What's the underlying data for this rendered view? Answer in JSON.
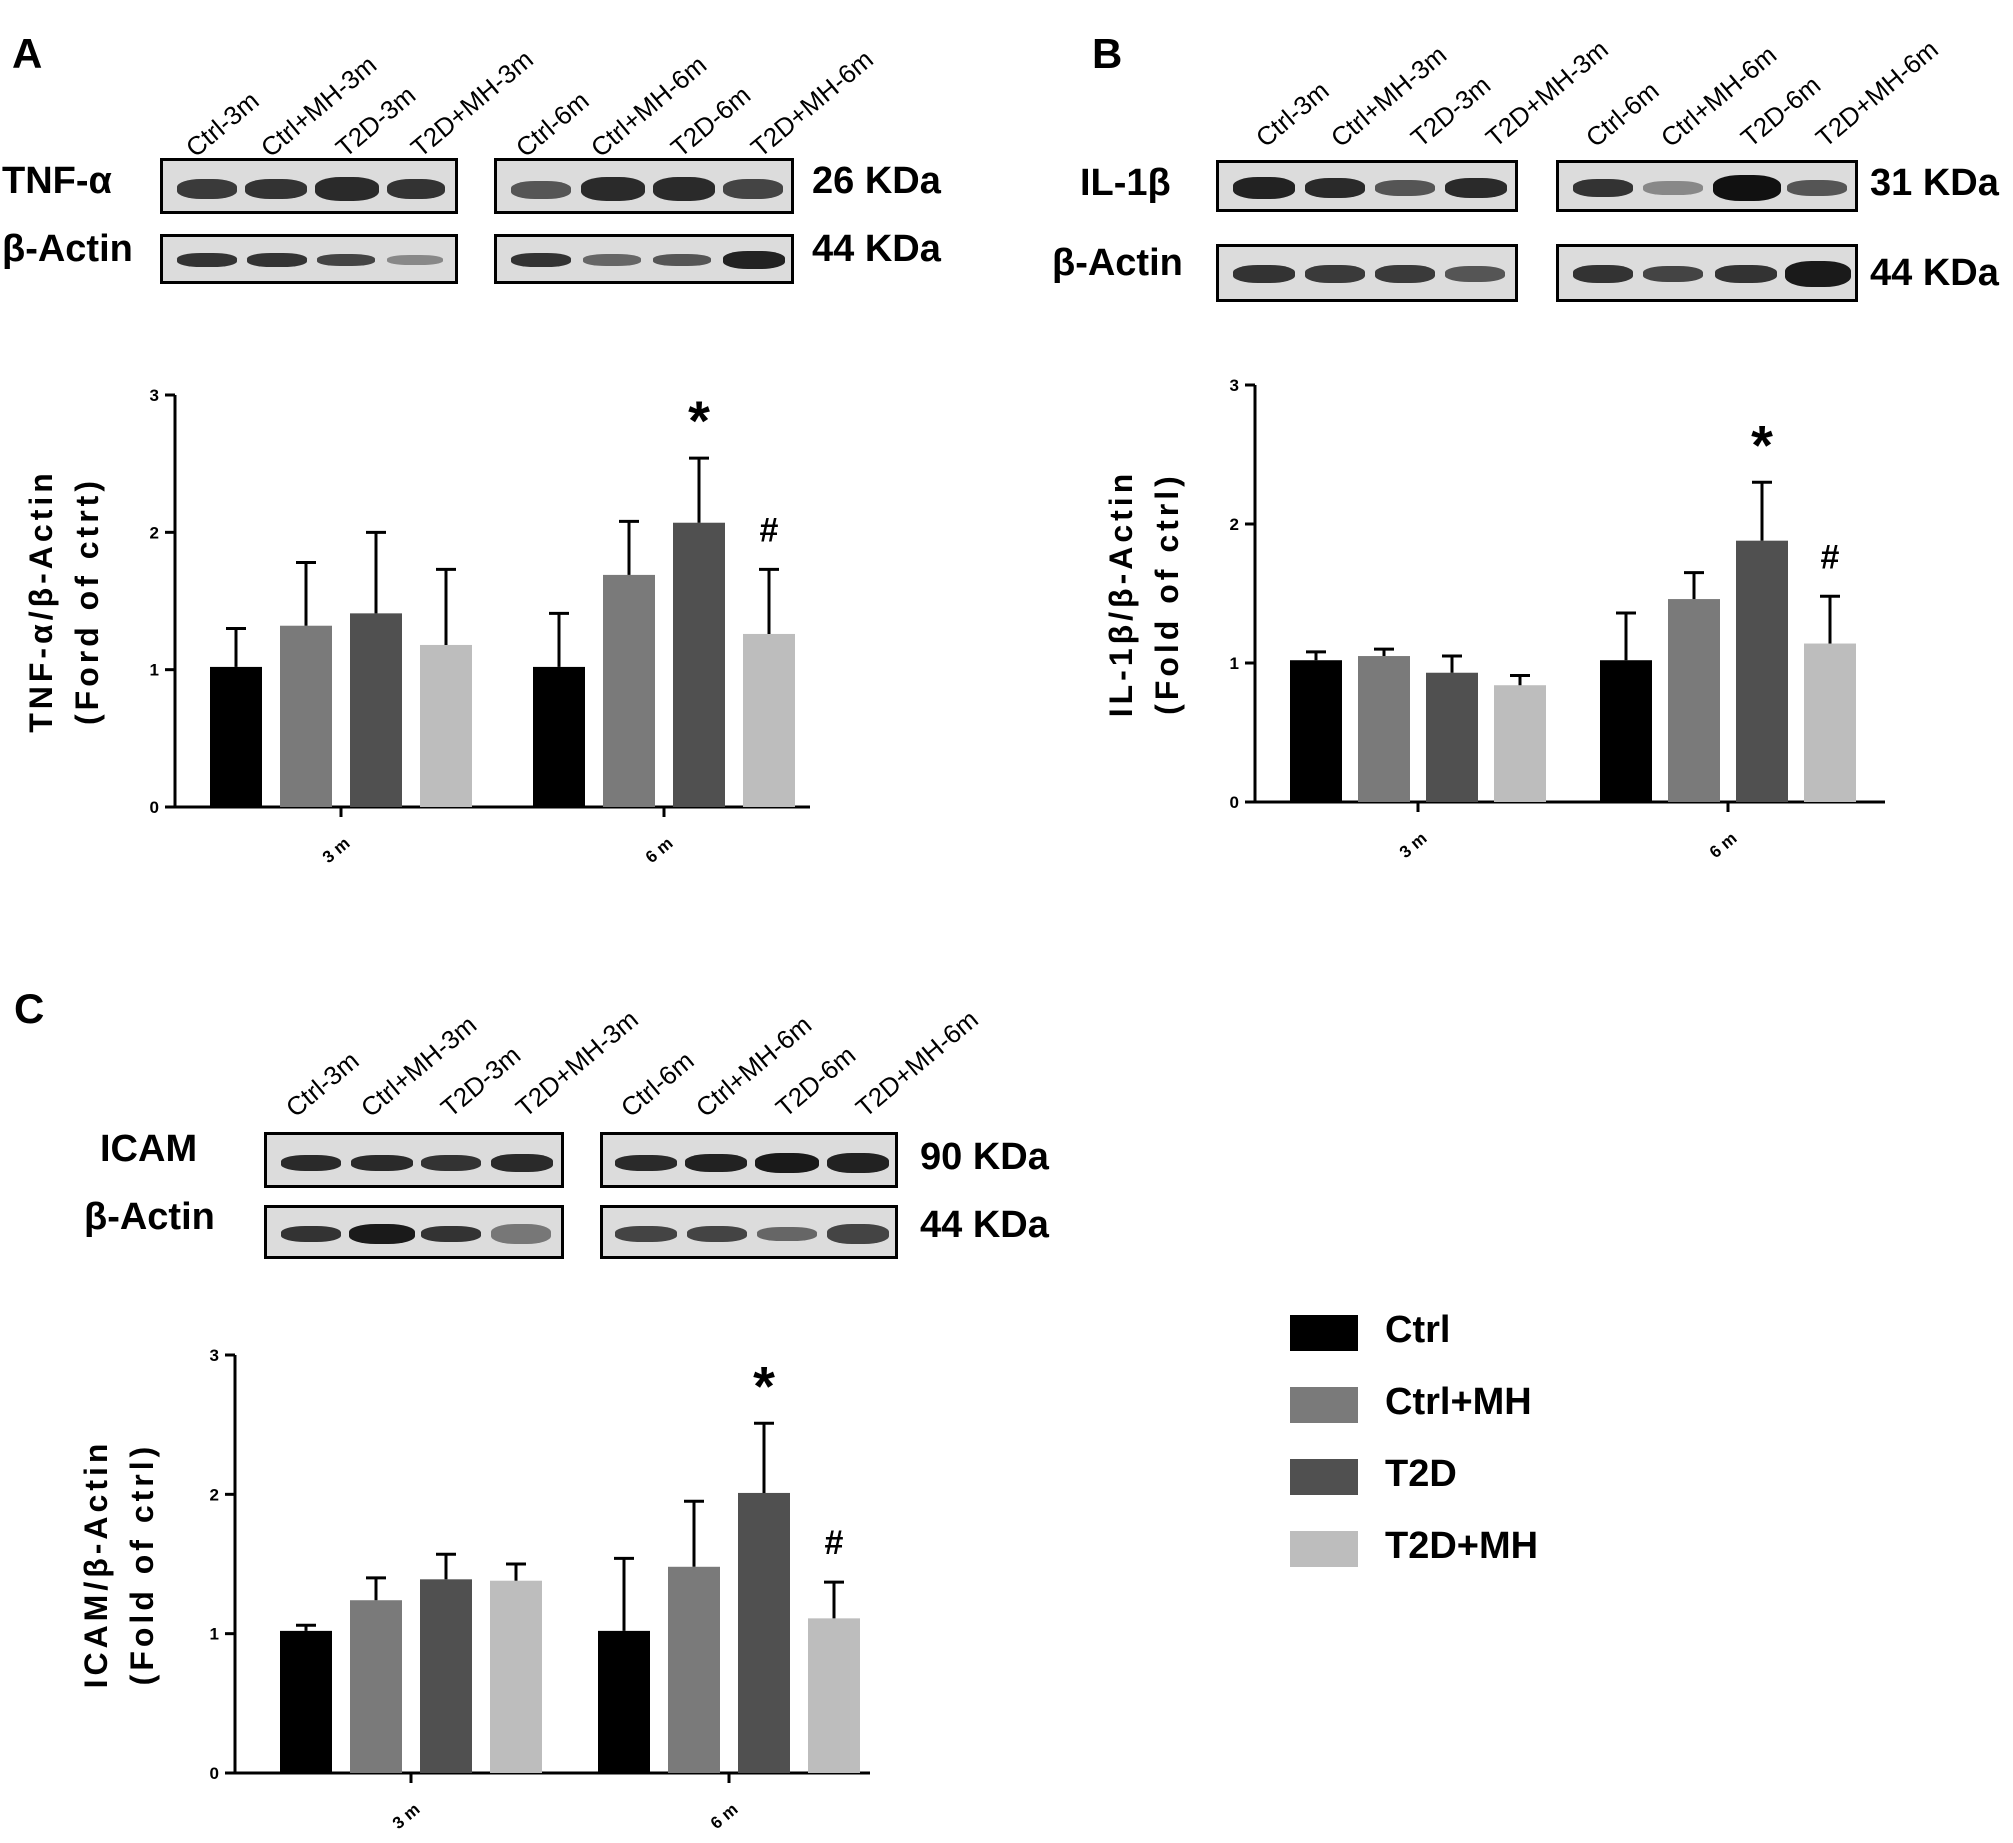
{
  "colors": {
    "ctrl": "#000000",
    "ctrl_mh": "#7a7a7a",
    "t2d": "#505050",
    "t2d_mh": "#bdbdbd"
  },
  "legend": [
    {
      "label": "Ctrl",
      "color": "#000000"
    },
    {
      "label": "Ctrl+MH",
      "color": "#7a7a7a"
    },
    {
      "label": "T2D",
      "color": "#505050"
    },
    {
      "label": "T2D+MH",
      "color": "#bdbdbd"
    }
  ],
  "panels": [
    {
      "letter": "A",
      "lanes": [
        "Ctrl-3m",
        "Ctrl+MH-3m",
        "T2D-3m",
        "T2D+MH-3m",
        "Ctrl-6m",
        "Ctrl+MH-6m",
        "T2D-6m",
        "T2D+MH-6m"
      ],
      "blots": [
        {
          "protein": "TNF-α",
          "size": "26 KDa"
        },
        {
          "protein": "β-Actin",
          "size": "44 KDa"
        }
      ]
    },
    {
      "letter": "B",
      "lanes": [
        "Ctrl-3m",
        "Ctrl+MH-3m",
        "T2D-3m",
        "T2D+MH-3m",
        "Ctrl-6m",
        "Ctrl+MH-6m",
        "T2D-6m",
        "T2D+MH-6m"
      ],
      "blots": [
        {
          "protein": "IL-1β",
          "size": "31 KDa"
        },
        {
          "protein": "β-Actin",
          "size": "44 KDa"
        }
      ]
    },
    {
      "letter": "C",
      "lanes": [
        "Ctrl-3m",
        "Ctrl+MH-3m",
        "T2D-3m",
        "T2D+MH-3m",
        "Ctrl-6m",
        "Ctrl+MH-6m",
        "T2D-6m",
        "T2D+MH-6m"
      ],
      "blots": [
        {
          "protein": "ICAM",
          "size": "90 KDa"
        },
        {
          "protein": "β-Actin",
          "size": "44 KDa"
        }
      ]
    }
  ],
  "chart_data": [
    {
      "type": "bar",
      "panel": "A",
      "categories": [
        "3 m",
        "6 m"
      ],
      "ylabel_line1": "TNF-α/β-Actin",
      "ylabel_line2": "(Ford of ctrt)",
      "ylim": [
        0,
        3
      ],
      "yticks": [
        "0",
        "1",
        "2",
        "3"
      ],
      "series": [
        {
          "name": "Ctrl",
          "values": [
            1.02,
            1.02
          ],
          "errors": [
            0.28,
            0.39
          ]
        },
        {
          "name": "Ctrl+MH",
          "values": [
            1.32,
            1.69
          ],
          "errors": [
            0.46,
            0.39
          ]
        },
        {
          "name": "T2D",
          "values": [
            1.41,
            2.07
          ],
          "errors": [
            0.59,
            0.47
          ]
        },
        {
          "name": "T2D+MH",
          "values": [
            1.18,
            1.26
          ],
          "errors": [
            0.55,
            0.47
          ]
        }
      ],
      "annotations": [
        {
          "text": "*",
          "category": "6 m",
          "series": "T2D"
        },
        {
          "text": "#",
          "category": "6 m",
          "series": "T2D+MH"
        }
      ]
    },
    {
      "type": "bar",
      "panel": "B",
      "categories": [
        "3 m",
        "6 m"
      ],
      "ylabel_line1": "IL-1β/β-Actin",
      "ylabel_line2": "(Fold of ctrl)",
      "ylim": [
        0,
        3
      ],
      "yticks": [
        "0",
        "1",
        "2",
        "3"
      ],
      "series": [
        {
          "name": "Ctrl",
          "values": [
            1.02,
            1.02
          ],
          "errors": [
            0.06,
            0.34
          ]
        },
        {
          "name": "Ctrl+MH",
          "values": [
            1.05,
            1.46
          ],
          "errors": [
            0.05,
            0.19
          ]
        },
        {
          "name": "T2D",
          "values": [
            0.93,
            1.88
          ],
          "errors": [
            0.12,
            0.42
          ]
        },
        {
          "name": "T2D+MH",
          "values": [
            0.84,
            1.14
          ],
          "errors": [
            0.07,
            0.34
          ]
        }
      ],
      "annotations": [
        {
          "text": "*",
          "category": "6 m",
          "series": "T2D"
        },
        {
          "text": "#",
          "category": "6 m",
          "series": "T2D+MH"
        }
      ]
    },
    {
      "type": "bar",
      "panel": "C",
      "categories": [
        "3 m",
        "6 m"
      ],
      "ylabel_line1": "ICAM/β-Actin",
      "ylabel_line2": "(Fold of ctrl)",
      "ylim": [
        0,
        3
      ],
      "yticks": [
        "0",
        "1",
        "2",
        "3"
      ],
      "series": [
        {
          "name": "Ctrl",
          "values": [
            1.02,
            1.02
          ],
          "errors": [
            0.04,
            0.52
          ]
        },
        {
          "name": "Ctrl+MH",
          "values": [
            1.24,
            1.48
          ],
          "errors": [
            0.16,
            0.47
          ]
        },
        {
          "name": "T2D",
          "values": [
            1.39,
            2.01
          ],
          "errors": [
            0.18,
            0.5
          ]
        },
        {
          "name": "T2D+MH",
          "values": [
            1.38,
            1.11
          ],
          "errors": [
            0.12,
            0.26
          ]
        }
      ],
      "annotations": [
        {
          "text": "*",
          "category": "6 m",
          "series": "T2D"
        },
        {
          "text": "#",
          "category": "6 m",
          "series": "T2D+MH"
        }
      ]
    }
  ]
}
